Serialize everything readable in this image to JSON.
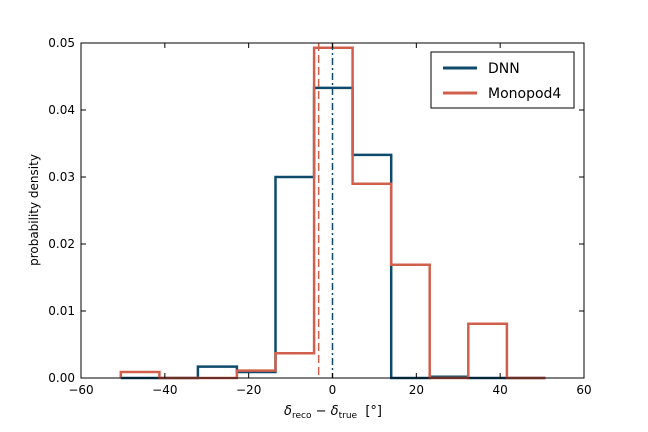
{
  "chart_data": {
    "type": "histogram",
    "xlabel": "δ_reco − δ_true  [°]",
    "xlabel_parts": {
      "delta1": "δ",
      "sub1": "reco",
      "minus": " − ",
      "delta2": "δ",
      "sub2": "true",
      "unit": "[°]"
    },
    "ylabel": "probability density",
    "xlim": [
      -60,
      60
    ],
    "ylim": [
      0,
      0.05
    ],
    "xticks": [
      -60,
      -40,
      -20,
      0,
      20,
      40,
      60
    ],
    "xtick_labels": [
      "−60",
      "−40",
      "−20",
      "0",
      "20",
      "40",
      "60"
    ],
    "yticks": [
      0.0,
      0.01,
      0.02,
      0.03,
      0.04,
      0.05
    ],
    "ytick_labels": [
      "0.00",
      "0.01",
      "0.02",
      "0.03",
      "0.04",
      "0.05"
    ],
    "legend_position": "top-right",
    "series": [
      {
        "name": "DNN",
        "color": "#0d4a6b",
        "bin_edges": [
          -50.5,
          -41.3,
          -32.1,
          -22.8,
          -13.6,
          -4.4,
          4.8,
          14.0,
          23.2,
          32.4,
          41.6,
          50.8
        ],
        "values": [
          0.0,
          0.0,
          0.0017,
          0.0009,
          0.03,
          0.0433,
          0.0333,
          0.0,
          0.0002,
          0.0,
          0.0
        ],
        "marker_x": 0.0,
        "marker_style": "dash-dot"
      },
      {
        "name": "Monopod4",
        "color": "#d0604c",
        "bin_edges": [
          -50.5,
          -41.3,
          -32.1,
          -22.8,
          -13.6,
          -4.4,
          4.8,
          14.0,
          23.2,
          32.4,
          41.6,
          50.8
        ],
        "values": [
          0.0009,
          0.0,
          0.0,
          0.0011,
          0.0037,
          0.0493,
          0.029,
          0.0169,
          0.0,
          0.0081,
          0.0
        ],
        "marker_x": -3.3,
        "marker_style": "dashed"
      }
    ]
  }
}
